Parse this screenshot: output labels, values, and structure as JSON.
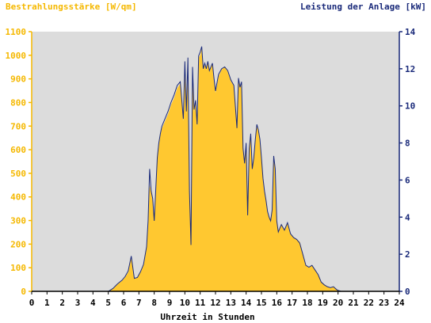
{
  "chart_data": {
    "type": "area",
    "ylabel_left": "Bestrahlungsstärke [W/qm]",
    "ylabel_right": "Leistung der Anlage [kW]",
    "xlabel": "Uhrzeit in Stunden",
    "xlim": [
      0,
      24
    ],
    "ylim_left": [
      0,
      1100
    ],
    "ylim_right": [
      0,
      14
    ],
    "x_ticks": [
      "0",
      "1",
      "2",
      "3",
      "4",
      "5",
      "6",
      "7",
      "8",
      "9",
      "10",
      "11",
      "12",
      "13",
      "14",
      "15",
      "16",
      "17",
      "18",
      "19",
      "20",
      "21",
      "22",
      "23",
      "24"
    ],
    "y_ticks_left": [
      "0",
      "100",
      "200",
      "300",
      "400",
      "500",
      "600",
      "700",
      "800",
      "900",
      "1000",
      "1100"
    ],
    "y_ticks_right": [
      "0",
      "2",
      "4",
      "6",
      "8",
      "10",
      "12",
      "14"
    ],
    "colors": {
      "irradiance_fill": "#ffc830",
      "power_line": "#1a2a7a",
      "plot_background": "#dcdcdc",
      "left_axis": "#f5b800",
      "right_axis": "#1a2a7a"
    },
    "series": [
      {
        "axis": "left",
        "style": "area",
        "x": [
          0,
          5.0,
          5.3,
          5.6,
          5.9,
          6.1,
          6.3,
          6.5,
          6.7,
          6.9,
          7.1,
          7.3,
          7.5,
          7.6,
          7.7,
          7.8,
          7.9,
          8.0,
          8.1,
          8.2,
          8.3,
          8.4,
          8.5,
          8.7,
          8.9,
          9.1,
          9.3,
          9.5,
          9.7,
          9.9,
          10.0,
          10.1,
          10.2,
          10.3,
          10.4,
          10.5,
          10.6,
          10.7,
          10.8,
          10.9,
          11.0,
          11.1,
          11.2,
          11.3,
          11.4,
          11.5,
          11.6,
          11.7,
          11.8,
          11.9,
          12.0,
          12.2,
          12.4,
          12.6,
          12.8,
          13.0,
          13.2,
          13.4,
          13.5,
          13.6,
          13.7,
          13.8,
          13.9,
          14.0,
          14.1,
          14.2,
          14.3,
          14.4,
          14.5,
          14.6,
          14.7,
          14.8,
          14.9,
          15.0,
          15.1,
          15.2,
          15.3,
          15.4,
          15.5,
          15.6,
          15.7,
          15.8,
          15.9,
          16.0,
          16.1,
          16.2,
          16.3,
          16.5,
          16.7,
          16.9,
          17.1,
          17.3,
          17.5,
          17.7,
          17.9,
          18.1,
          18.3,
          18.5,
          18.7,
          18.9,
          19.1,
          19.3,
          19.5,
          19.7,
          19.9,
          20.0,
          20.2,
          24
        ],
        "values": [
          0,
          0,
          10,
          30,
          45,
          60,
          80,
          140,
          55,
          60,
          80,
          110,
          180,
          290,
          450,
          420,
          380,
          300,
          420,
          550,
          620,
          660,
          690,
          720,
          750,
          790,
          820,
          860,
          880,
          720,
          960,
          750,
          900,
          420,
          200,
          940,
          760,
          800,
          700,
          990,
          1000,
          1030,
          940,
          960,
          940,
          970,
          930,
          950,
          960,
          900,
          840,
          910,
          940,
          950,
          930,
          890,
          870,
          690,
          900,
          860,
          880,
          600,
          540,
          620,
          320,
          600,
          660,
          520,
          560,
          640,
          700,
          680,
          640,
          560,
          480,
          420,
          380,
          340,
          310,
          300,
          340,
          560,
          520,
          300,
          250,
          270,
          280,
          260,
          290,
          240,
          230,
          220,
          210,
          160,
          110,
          100,
          110,
          90,
          70,
          40,
          30,
          20,
          15,
          20,
          10,
          5,
          0,
          0
        ]
      },
      {
        "axis": "right",
        "style": "line",
        "x": [
          0,
          5.0,
          5.3,
          5.6,
          5.9,
          6.1,
          6.3,
          6.5,
          6.7,
          6.9,
          7.1,
          7.3,
          7.5,
          7.6,
          7.7,
          7.8,
          7.9,
          8.0,
          8.1,
          8.2,
          8.3,
          8.4,
          8.5,
          8.7,
          8.9,
          9.1,
          9.3,
          9.5,
          9.7,
          9.9,
          10.0,
          10.1,
          10.2,
          10.3,
          10.4,
          10.5,
          10.6,
          10.7,
          10.8,
          10.9,
          11.0,
          11.1,
          11.2,
          11.3,
          11.4,
          11.5,
          11.6,
          11.7,
          11.8,
          11.9,
          12.0,
          12.2,
          12.4,
          12.6,
          12.8,
          13.0,
          13.2,
          13.4,
          13.5,
          13.6,
          13.7,
          13.8,
          13.9,
          14.0,
          14.1,
          14.2,
          14.3,
          14.4,
          14.5,
          14.6,
          14.7,
          14.8,
          14.9,
          15.0,
          15.1,
          15.2,
          15.3,
          15.4,
          15.5,
          15.6,
          15.7,
          15.8,
          15.9,
          16.0,
          16.1,
          16.2,
          16.3,
          16.5,
          16.7,
          16.9,
          17.1,
          17.3,
          17.5,
          17.7,
          17.9,
          18.1,
          18.3,
          18.5,
          18.7,
          18.9,
          19.1,
          19.3,
          19.5,
          19.7,
          19.9,
          20.0,
          20.2,
          24
        ],
        "values": [
          0,
          0,
          0.15,
          0.4,
          0.6,
          0.8,
          1.1,
          1.9,
          0.7,
          0.75,
          1.05,
          1.45,
          2.4,
          3.8,
          6.6,
          5.4,
          5.0,
          3.8,
          5.5,
          7.2,
          8.0,
          8.5,
          8.9,
          9.3,
          9.7,
          10.2,
          10.6,
          11.1,
          11.3,
          9.3,
          12.4,
          9.7,
          12.6,
          5.4,
          2.5,
          12.1,
          9.8,
          10.3,
          9.0,
          12.7,
          12.9,
          13.2,
          12.0,
          12.3,
          12.0,
          12.4,
          11.9,
          12.1,
          12.3,
          11.5,
          10.8,
          11.7,
          12.0,
          12.1,
          11.9,
          11.4,
          11.1,
          8.8,
          11.5,
          11.0,
          11.3,
          7.7,
          6.9,
          8.0,
          4.1,
          7.7,
          8.5,
          6.6,
          7.2,
          8.2,
          9.0,
          8.7,
          8.2,
          7.2,
          6.1,
          5.4,
          4.9,
          4.3,
          4.0,
          3.8,
          4.4,
          7.3,
          6.6,
          3.8,
          3.2,
          3.4,
          3.6,
          3.3,
          3.7,
          3.1,
          2.9,
          2.8,
          2.6,
          2.0,
          1.4,
          1.3,
          1.4,
          1.15,
          0.9,
          0.5,
          0.35,
          0.25,
          0.2,
          0.25,
          0.1,
          0.05,
          0,
          0
        ]
      }
    ]
  }
}
